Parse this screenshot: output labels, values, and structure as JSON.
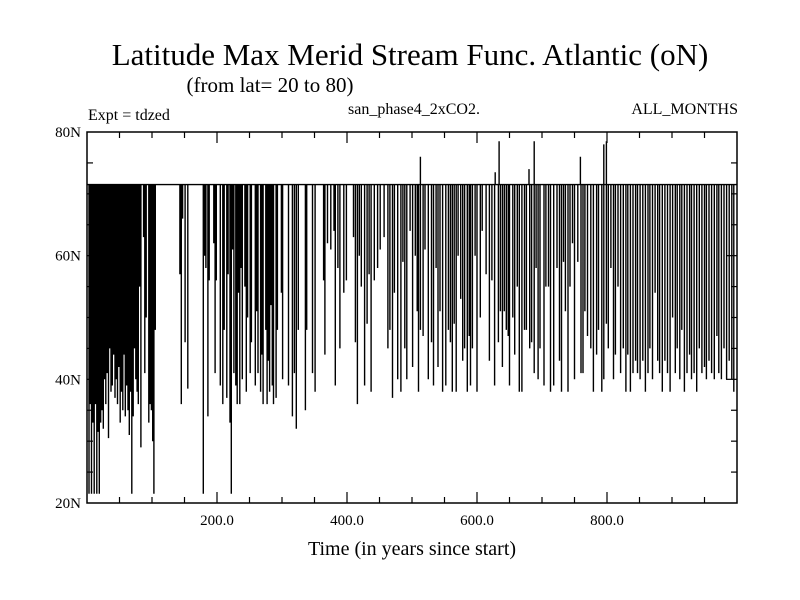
{
  "chart_data": {
    "type": "line",
    "title": "Latitude Max Merid Stream Func. Atlantic (oN)",
    "subtitle": "(from lat= 20 to 80)",
    "annotations": {
      "left": "Expt = tdzed",
      "center": "san_phase4_2xCO2.",
      "right": "ALL_MONTHS"
    },
    "xlabel": "Time (in years since start)",
    "ylabel": "",
    "xlim": [
      0,
      1000
    ],
    "ylim": [
      20,
      80
    ],
    "x_ticks": [
      200,
      400,
      600,
      800
    ],
    "x_tick_labels": [
      "200.0",
      "400.0",
      "600.0",
      "800.0"
    ],
    "y_ticks": [
      20,
      40,
      60,
      80
    ],
    "y_tick_labels": [
      "20N",
      "40N",
      "60N",
      "80N"
    ],
    "grid": false,
    "legend": "none",
    "baseline_latitude": 71.5,
    "series_color": "#000000",
    "excursions": [
      [
        3,
        21.5
      ],
      [
        5,
        36
      ],
      [
        7,
        21.5
      ],
      [
        9,
        33
      ],
      [
        11,
        21.5
      ],
      [
        13,
        36
      ],
      [
        15,
        21.5
      ],
      [
        17,
        31.5
      ],
      [
        19,
        21.5
      ],
      [
        21,
        33
      ],
      [
        23,
        35
      ],
      [
        25,
        32
      ],
      [
        27,
        40
      ],
      [
        29,
        36
      ],
      [
        31,
        41
      ],
      [
        33,
        30.5
      ],
      [
        35,
        45
      ],
      [
        37,
        38
      ],
      [
        39,
        39
      ],
      [
        41,
        44
      ],
      [
        43,
        37
      ],
      [
        45,
        40
      ],
      [
        47,
        36
      ],
      [
        49,
        42
      ],
      [
        51,
        33
      ],
      [
        53,
        38
      ],
      [
        55,
        35
      ],
      [
        57,
        44
      ],
      [
        59,
        34
      ],
      [
        61,
        39
      ],
      [
        63,
        35
      ],
      [
        65,
        31
      ],
      [
        67,
        38
      ],
      [
        69,
        21.5
      ],
      [
        71,
        34
      ],
      [
        73,
        45
      ],
      [
        75,
        40
      ],
      [
        77,
        38
      ],
      [
        79,
        36
      ],
      [
        81,
        55
      ],
      [
        83,
        29
      ],
      [
        87,
        63
      ],
      [
        89,
        41
      ],
      [
        91,
        50
      ],
      [
        95,
        33
      ],
      [
        97,
        36
      ],
      [
        99,
        35
      ],
      [
        101,
        30
      ],
      [
        103,
        21.5
      ],
      [
        105,
        48
      ],
      [
        143,
        57
      ],
      [
        145,
        36
      ],
      [
        147,
        66
      ],
      [
        151,
        46
      ],
      [
        155,
        38.5
      ],
      [
        179,
        21.5
      ],
      [
        181,
        60
      ],
      [
        183,
        58
      ],
      [
        186,
        34
      ],
      [
        188,
        56
      ],
      [
        195,
        62
      ],
      [
        197,
        41
      ],
      [
        199,
        56
      ],
      [
        205,
        39
      ],
      [
        209,
        36
      ],
      [
        211,
        48
      ],
      [
        215,
        37
      ],
      [
        217,
        57
      ],
      [
        220,
        33
      ],
      [
        222,
        21.5
      ],
      [
        224,
        61
      ],
      [
        226,
        41
      ],
      [
        229,
        39
      ],
      [
        231,
        36
      ],
      [
        233,
        54
      ],
      [
        235,
        36
      ],
      [
        237,
        58
      ],
      [
        239,
        40
      ],
      [
        243,
        55
      ],
      [
        245,
        38
      ],
      [
        247,
        50
      ],
      [
        251,
        41
      ],
      [
        253,
        46
      ],
      [
        259,
        39
      ],
      [
        261,
        51
      ],
      [
        263,
        41
      ],
      [
        267,
        38
      ],
      [
        269,
        44
      ],
      [
        271,
        36
      ],
      [
        275,
        48
      ],
      [
        277,
        36
      ],
      [
        279,
        43
      ],
      [
        281,
        38
      ],
      [
        283,
        52
      ],
      [
        285,
        39
      ],
      [
        287,
        36
      ],
      [
        291,
        37
      ],
      [
        293,
        48
      ],
      [
        299,
        54
      ],
      [
        301,
        40
      ],
      [
        310,
        39
      ],
      [
        316,
        34
      ],
      [
        319,
        41
      ],
      [
        322,
        32
      ],
      [
        325,
        48
      ],
      [
        336,
        35
      ],
      [
        338,
        48
      ],
      [
        347,
        41
      ],
      [
        351,
        38
      ],
      [
        364,
        56
      ],
      [
        366,
        44
      ],
      [
        370,
        62
      ],
      [
        375,
        61
      ],
      [
        380,
        64
      ],
      [
        382,
        39
      ],
      [
        386,
        58
      ],
      [
        389,
        45
      ],
      [
        395,
        54
      ],
      [
        399,
        56
      ],
      [
        410,
        63
      ],
      [
        413,
        46
      ],
      [
        416,
        36
      ],
      [
        419,
        60
      ],
      [
        422,
        55
      ],
      [
        427,
        39
      ],
      [
        431,
        49
      ],
      [
        434,
        57
      ],
      [
        437,
        38
      ],
      [
        442,
        56
      ],
      [
        447,
        58
      ],
      [
        451,
        61
      ],
      [
        457,
        63
      ],
      [
        463,
        45
      ],
      [
        466,
        48
      ],
      [
        470,
        37
      ],
      [
        473,
        54
      ],
      [
        478,
        40
      ],
      [
        483,
        38
      ],
      [
        486,
        59
      ],
      [
        489,
        45
      ],
      [
        492,
        40
      ],
      [
        497,
        64
      ],
      [
        501,
        42
      ],
      [
        505,
        60
      ],
      [
        508,
        51
      ],
      [
        510,
        38
      ],
      [
        513,
        48
      ],
      [
        517,
        47
      ],
      [
        520,
        61
      ],
      [
        525,
        40
      ],
      [
        530,
        46
      ],
      [
        533,
        39
      ],
      [
        537,
        58
      ],
      [
        540,
        42
      ],
      [
        543,
        51
      ],
      [
        547,
        38
      ],
      [
        552,
        39
      ],
      [
        556,
        48
      ],
      [
        559,
        46
      ],
      [
        562,
        38
      ],
      [
        565,
        49
      ],
      [
        568,
        38
      ],
      [
        571,
        60
      ],
      [
        575,
        53
      ],
      [
        578,
        43
      ],
      [
        581,
        45
      ],
      [
        585,
        38
      ],
      [
        588,
        47
      ],
      [
        590,
        39
      ],
      [
        593,
        45
      ],
      [
        597,
        60
      ],
      [
        600,
        38
      ],
      [
        605,
        50
      ],
      [
        608,
        64
      ],
      [
        614,
        57
      ],
      [
        619,
        43
      ],
      [
        623,
        56
      ],
      [
        627,
        39
      ],
      [
        633,
        46
      ],
      [
        636,
        51
      ],
      [
        639,
        42
      ],
      [
        642,
        51
      ],
      [
        645,
        48
      ],
      [
        648,
        47
      ],
      [
        650,
        39
      ],
      [
        655,
        50
      ],
      [
        658,
        44
      ],
      [
        662,
        55
      ],
      [
        665,
        38
      ],
      [
        669,
        38
      ],
      [
        673,
        48
      ],
      [
        676,
        48
      ],
      [
        681,
        45
      ],
      [
        684,
        46
      ],
      [
        688,
        41
      ],
      [
        691,
        58
      ],
      [
        694,
        40
      ],
      [
        697,
        45
      ],
      [
        703,
        39
      ],
      [
        706,
        55
      ],
      [
        710,
        55
      ],
      [
        713,
        38
      ],
      [
        718,
        39
      ],
      [
        723,
        58
      ],
      [
        727,
        43
      ],
      [
        730,
        38
      ],
      [
        733,
        59
      ],
      [
        736,
        51
      ],
      [
        740,
        38
      ],
      [
        743,
        55
      ],
      [
        747,
        62
      ],
      [
        750,
        40
      ],
      [
        755,
        59
      ],
      [
        760,
        41
      ],
      [
        763,
        41
      ],
      [
        766,
        51
      ],
      [
        770,
        47
      ],
      [
        775,
        45
      ],
      [
        779,
        38
      ],
      [
        784,
        44
      ],
      [
        787,
        48
      ],
      [
        792,
        38
      ],
      [
        795,
        40
      ],
      [
        799,
        49
      ],
      [
        802,
        45
      ],
      [
        806,
        58
      ],
      [
        810,
        40
      ],
      [
        813,
        44
      ],
      [
        817,
        55
      ],
      [
        821,
        41
      ],
      [
        825,
        45
      ],
      [
        829,
        38
      ],
      [
        832,
        44
      ],
      [
        836,
        38
      ],
      [
        840,
        41
      ],
      [
        844,
        43
      ],
      [
        847,
        41
      ],
      [
        851,
        40
      ],
      [
        855,
        43
      ],
      [
        859,
        38
      ],
      [
        863,
        41
      ],
      [
        866,
        45
      ],
      [
        870,
        40
      ],
      [
        874,
        54
      ],
      [
        878,
        43
      ],
      [
        881,
        41
      ],
      [
        885,
        38
      ],
      [
        889,
        43
      ],
      [
        893,
        41
      ],
      [
        897,
        38
      ],
      [
        901,
        50
      ],
      [
        905,
        41
      ],
      [
        908,
        45
      ],
      [
        912,
        40
      ],
      [
        915,
        48
      ],
      [
        919,
        38
      ],
      [
        923,
        41
      ],
      [
        927,
        44
      ],
      [
        930,
        40
      ],
      [
        934,
        41
      ],
      [
        938,
        38
      ],
      [
        942,
        45
      ],
      [
        946,
        41
      ],
      [
        950,
        42
      ],
      [
        953,
        40
      ],
      [
        957,
        43
      ],
      [
        961,
        41
      ],
      [
        965,
        40
      ],
      [
        969,
        47
      ],
      [
        972,
        41
      ],
      [
        976,
        40
      ],
      [
        980,
        45
      ],
      [
        984,
        40
      ],
      [
        988,
        43
      ],
      [
        992,
        40
      ],
      [
        995,
        38
      ]
    ],
    "spikes": [
      [
        513,
        76
      ],
      [
        628,
        73.5
      ],
      [
        634,
        78.5
      ],
      [
        680,
        74
      ],
      [
        688,
        78.5
      ],
      [
        759,
        76
      ],
      [
        795,
        78
      ],
      [
        799,
        78.5
      ]
    ]
  }
}
